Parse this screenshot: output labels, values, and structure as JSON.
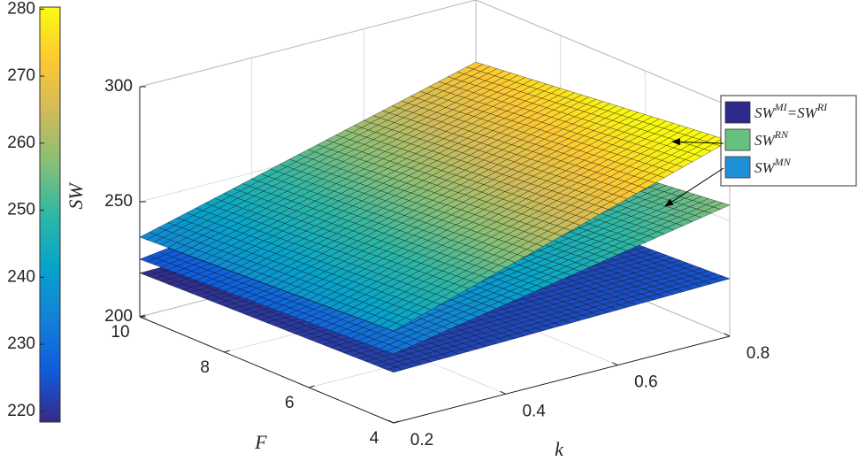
{
  "chart_data": {
    "type": "surface",
    "zlabel": "SW",
    "xlabel": "k",
    "ylabel": "F",
    "x": [
      0.2,
      0.4,
      0.6,
      0.8
    ],
    "y": [
      4,
      6,
      8,
      10
    ],
    "xlim": [
      0.2,
      0.8
    ],
    "ylim": [
      4,
      10
    ],
    "zlim": [
      200,
      300
    ],
    "xticks": [
      0.2,
      0.4,
      0.6,
      0.8
    ],
    "yticks": [
      4,
      6,
      8,
      10
    ],
    "zticks": [
      200,
      250,
      300
    ],
    "grid": true,
    "colorbar": {
      "clim": [
        218.4,
        280.3
      ],
      "ticks": [
        220,
        230,
        240,
        250,
        260,
        270,
        280
      ]
    },
    "colormap": [
      "#352a87",
      "#0f5cdd",
      "#1481d6",
      "#06a4ca",
      "#2eb7a4",
      "#87bf77",
      "#d1bb59",
      "#fec832",
      "#f9fb0e"
    ],
    "series": [
      {
        "name": [
          "SW",
          "MI",
          "=SW",
          "RI"
        ],
        "color": "#2e2a8a",
        "z": [
          [
            222,
            223,
            224,
            225
          ],
          [
            221,
            221.8,
            222.6,
            223.3
          ],
          [
            220,
            220.6,
            221.1,
            221.7
          ],
          [
            219,
            219.3,
            219.7,
            220
          ]
        ]
      },
      {
        "name": [
          "SW",
          "RN"
        ],
        "color": "#66c07e",
        "z": [
          [
            240,
            255,
            270,
            285
          ],
          [
            238.2,
            252.5,
            266.7,
            281
          ],
          [
            236.4,
            249.9,
            263.5,
            277
          ],
          [
            234.6,
            247.4,
            260.2,
            273
          ]
        ]
      },
      {
        "name": [
          "SW",
          "MN"
        ],
        "color": "#1e90d8",
        "z": [
          [
            230,
            239,
            248,
            257
          ],
          [
            228.3,
            236.6,
            244.8,
            253
          ],
          [
            226.7,
            234.1,
            241.6,
            249
          ],
          [
            225,
            231.7,
            238.3,
            245
          ]
        ]
      }
    ]
  }
}
